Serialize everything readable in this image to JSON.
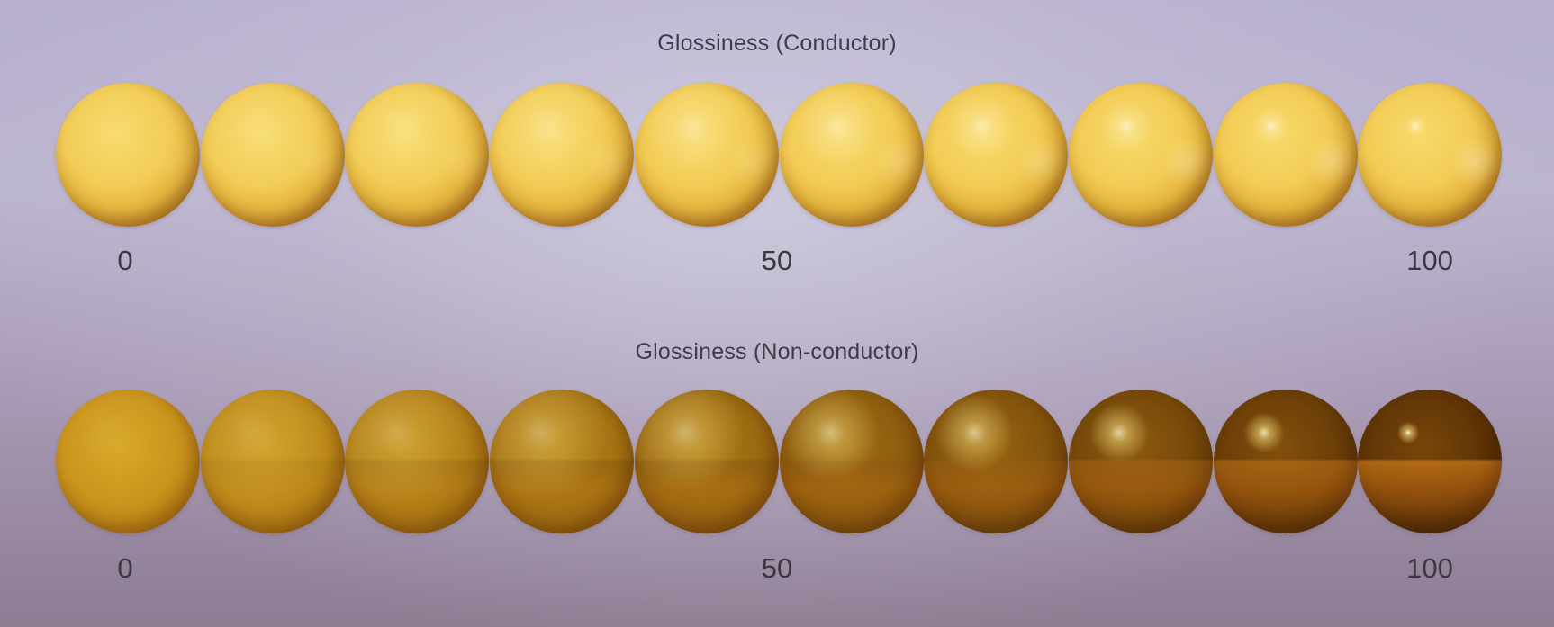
{
  "sections": [
    {
      "title": "Glossiness (Conductor)",
      "material": "conductor",
      "glossiness_levels": [
        0,
        11,
        22,
        33,
        44,
        56,
        67,
        78,
        89,
        100
      ],
      "scale_labels": [
        "0",
        "50",
        "100"
      ]
    },
    {
      "title": "Glossiness (Non-conductor)",
      "material": "non-conductor",
      "glossiness_levels": [
        0,
        11,
        22,
        33,
        44,
        56,
        67,
        78,
        89,
        100
      ],
      "scale_labels": [
        "0",
        "50",
        "100"
      ]
    }
  ],
  "colors": {
    "conductor_base": "#f2c94c",
    "non_conductor_base": "#c9921a",
    "label_text": "#3a3642"
  }
}
